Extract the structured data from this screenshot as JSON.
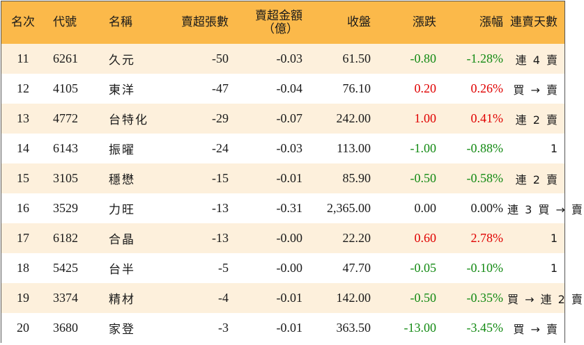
{
  "headers": {
    "rank": "名次",
    "code": "代號",
    "name": "名稱",
    "net_sell_lots": "賣超張數",
    "net_sell_amount_line1": "賣超金額",
    "net_sell_amount_line2": "（億）",
    "close": "收盤",
    "change": "漲跌",
    "pct_change": "漲幅",
    "consecutive_days": "連賣天數"
  },
  "colors": {
    "header_bg": "#fbb94a",
    "odd_row_bg": "#fdf0dc",
    "even_row_bg": "#ffffff",
    "up": "#e00000",
    "down": "#138a13"
  },
  "rows": [
    {
      "rank": "11",
      "code": "6261",
      "name": "久元",
      "lots": "-50",
      "amount": "-0.03",
      "close": "61.50",
      "change": "-0.80",
      "pct": "-1.28%",
      "trend": "down",
      "days": "連 4 賣"
    },
    {
      "rank": "12",
      "code": "4105",
      "name": "東洋",
      "lots": "-47",
      "amount": "-0.04",
      "close": "76.10",
      "change": "0.20",
      "pct": "0.26%",
      "trend": "up",
      "days": "買 → 賣"
    },
    {
      "rank": "13",
      "code": "4772",
      "name": "台特化",
      "lots": "-29",
      "amount": "-0.07",
      "close": "242.00",
      "change": "1.00",
      "pct": "0.41%",
      "trend": "up",
      "days": "連 2 賣"
    },
    {
      "rank": "14",
      "code": "6143",
      "name": "振曜",
      "lots": "-24",
      "amount": "-0.03",
      "close": "113.00",
      "change": "-1.00",
      "pct": "-0.88%",
      "trend": "down",
      "days": "1"
    },
    {
      "rank": "15",
      "code": "3105",
      "name": "穩懋",
      "lots": "-15",
      "amount": "-0.01",
      "close": "85.90",
      "change": "-0.50",
      "pct": "-0.58%",
      "trend": "down",
      "days": "連 2 賣"
    },
    {
      "rank": "16",
      "code": "3529",
      "name": "力旺",
      "lots": "-13",
      "amount": "-0.31",
      "close": "2,365.00",
      "change": "0.00",
      "pct": "0.00%",
      "trend": "flat",
      "days": "連 3 買 → 賣"
    },
    {
      "rank": "17",
      "code": "6182",
      "name": "合晶",
      "lots": "-13",
      "amount": "-0.00",
      "close": "22.20",
      "change": "0.60",
      "pct": "2.78%",
      "trend": "up",
      "days": "1"
    },
    {
      "rank": "18",
      "code": "5425",
      "name": "台半",
      "lots": "-5",
      "amount": "-0.00",
      "close": "47.70",
      "change": "-0.05",
      "pct": "-0.10%",
      "trend": "down",
      "days": "1"
    },
    {
      "rank": "19",
      "code": "3374",
      "name": "精材",
      "lots": "-4",
      "amount": "-0.01",
      "close": "142.00",
      "change": "-0.50",
      "pct": "-0.35%",
      "trend": "down",
      "days": "買 → 連 2 賣"
    },
    {
      "rank": "20",
      "code": "3680",
      "name": "家登",
      "lots": "-3",
      "amount": "-0.01",
      "close": "363.50",
      "change": "-13.00",
      "pct": "-3.45%",
      "trend": "down",
      "days": "買 → 賣"
    }
  ]
}
